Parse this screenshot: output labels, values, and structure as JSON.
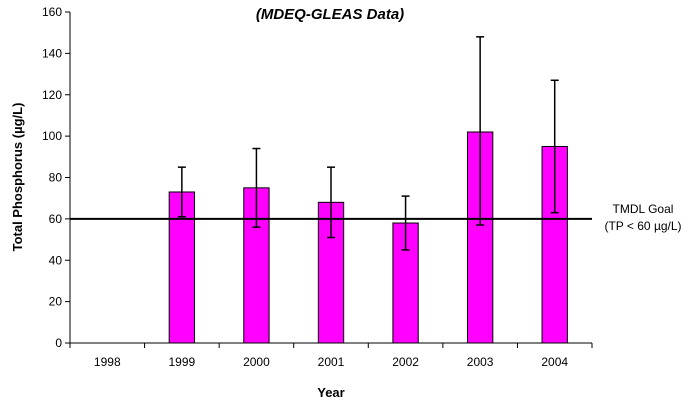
{
  "chart_data": {
    "type": "bar",
    "title": "",
    "subtitle": "(MDEQ-GLEAS Data)",
    "xlabel": "Year",
    "ylabel": "Total Phosphorus (µg/L)",
    "ylim": [
      0,
      160
    ],
    "y_ticks": [
      0,
      20,
      40,
      60,
      80,
      100,
      120,
      140,
      160
    ],
    "categories": [
      "1998",
      "1999",
      "2000",
      "2001",
      "2002",
      "2003",
      "2004"
    ],
    "values": [
      null,
      73,
      75,
      68,
      58,
      102,
      95
    ],
    "error_low": [
      null,
      61,
      56,
      51,
      45,
      57,
      63
    ],
    "error_high": [
      null,
      85,
      94,
      85,
      71,
      148,
      127
    ],
    "bar_color": "#FF00FF",
    "grid": false,
    "reference_line": {
      "value": 60,
      "label_line1": "TMDL Goal",
      "label_line2": "(TP < 60 µg/L)"
    }
  }
}
